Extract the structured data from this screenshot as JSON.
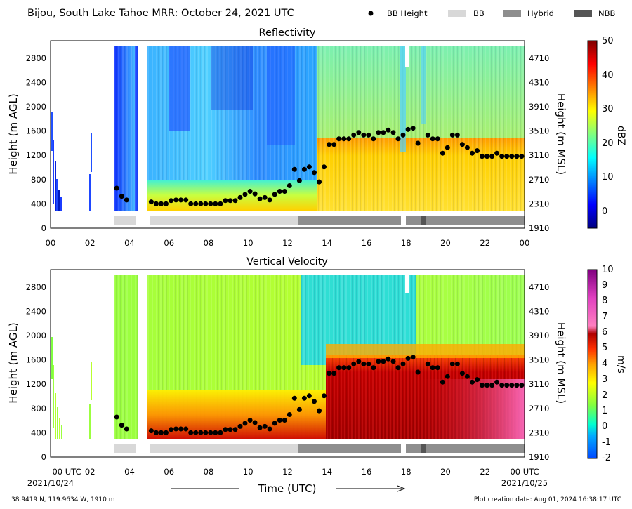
{
  "header": {
    "title": "Bijou, South Lake Tahoe MRR:  October 24, 2021 UTC",
    "legend": [
      {
        "label": "BB Height",
        "kind": "dot",
        "color": "#000000"
      },
      {
        "label": "BB",
        "kind": "box",
        "color": "#d8d8d8"
      },
      {
        "label": "Hybrid",
        "kind": "box",
        "color": "#8e8e8e"
      },
      {
        "label": "NBB",
        "kind": "box",
        "color": "#555555"
      }
    ]
  },
  "footer": {
    "location": "38.9419 N, 119.9634 W, 1910 m",
    "creation": "Plot creation date: Aug 01, 2024 16:38:17 UTC",
    "xlabel": "Time (UTC)",
    "start_date": "2021/10/24",
    "end_date": "2021/10/25"
  },
  "chart_data": [
    {
      "type": "heatmap",
      "title": "Reflectivity",
      "ylabel": "Height (m AGL)",
      "ylabel_right": "Height (m MSL)",
      "x_ticks": [
        "00",
        "02",
        "04",
        "06",
        "08",
        "10",
        "12",
        "14",
        "16",
        "18",
        "20",
        "22",
        "00"
      ],
      "xlim": [
        0,
        24
      ],
      "ylim": [
        0,
        3000
      ],
      "y_ticks": [
        0,
        400,
        800,
        1200,
        1600,
        2000,
        2400,
        2800
      ],
      "y_ticks_right": [
        1910,
        2310,
        2710,
        3110,
        3510,
        3910,
        4310,
        4710
      ],
      "colorbar": {
        "label": "dBZ",
        "min": -5,
        "max": 50,
        "ticks": [
          0,
          10,
          20,
          30,
          40,
          50
        ]
      },
      "bb_height": {
        "x": [
          3.35,
          3.6,
          3.85,
          4.15,
          4.35,
          5.1,
          5.35,
          5.6,
          5.85,
          6.1,
          6.35,
          6.6,
          6.85,
          7.1,
          7.35,
          7.6,
          7.85,
          8.1,
          8.35,
          8.6,
          8.85,
          9.1,
          9.35,
          9.6,
          9.85,
          10.1,
          10.35,
          10.6,
          10.85,
          11.1,
          11.35,
          11.6,
          11.85,
          12.1,
          12.35,
          12.6,
          12.85,
          13.1,
          13.35,
          13.6,
          13.85,
          14.1,
          14.35,
          14.6,
          14.85,
          15.1,
          15.35,
          15.6,
          15.85,
          16.1,
          16.35,
          16.6,
          16.85,
          17.1,
          17.35,
          17.6,
          17.85,
          18.1,
          18.35,
          18.6,
          18.85,
          19.1,
          19.35,
          19.6,
          19.85,
          20.1,
          20.35,
          20.6,
          20.85,
          21.1,
          21.35,
          21.6,
          21.85,
          22.1,
          22.35,
          22.6,
          22.85,
          23.1,
          23.35,
          23.6,
          23.85
        ],
        "y": [
          640,
          510,
          450,
          null,
          null,
          420,
          390,
          390,
          390,
          440,
          450,
          450,
          450,
          390,
          390,
          390,
          390,
          390,
          390,
          390,
          440,
          440,
          440,
          490,
          540,
          590,
          550,
          470,
          490,
          450,
          540,
          590,
          590,
          680,
          940,
          760,
          940,
          980,
          890,
          740,
          980,
          1340,
          1340,
          1430,
          1430,
          1430,
          1490,
          1530,
          1490,
          1490,
          1430,
          1530,
          1530,
          1570,
          1530,
          1430,
          1490,
          1580,
          1600,
          1360,
          null,
          1490,
          1430,
          1430,
          1200,
          1290,
          1490,
          1490,
          1340,
          1290,
          1200,
          1240,
          1150,
          1150,
          1150,
          1200,
          1150,
          1150,
          1150,
          1150,
          1150
        ]
      },
      "bb_type": [
        {
          "start": 3.25,
          "end": 4.3,
          "type": "BB"
        },
        {
          "start": 5.0,
          "end": 12.5,
          "type": "BB"
        },
        {
          "start": 12.5,
          "end": 17.75,
          "type": "Hybrid"
        },
        {
          "start": 18.1,
          "end": 18.75,
          "type": "Hybrid"
        },
        {
          "start": 18.75,
          "end": 19.0,
          "type": "NBB"
        },
        {
          "start": 19.0,
          "end": 24.0,
          "type": "Hybrid"
        }
      ]
    },
    {
      "type": "heatmap",
      "title": "Vertical Velocity",
      "ylabel": "Height (m AGL)",
      "ylabel_right": "Height (m MSL)",
      "x_ticks": [
        "00 UTC",
        "02",
        "04",
        "06",
        "08",
        "10",
        "12",
        "14",
        "16",
        "18",
        "20",
        "22",
        "00 UTC"
      ],
      "xlim": [
        0,
        24
      ],
      "ylim": [
        0,
        3000
      ],
      "y_ticks": [
        0,
        400,
        800,
        1200,
        1600,
        2000,
        2400,
        2800
      ],
      "y_ticks_right": [
        1910,
        2310,
        2710,
        3110,
        3510,
        3910,
        4310,
        4710
      ],
      "colorbar": {
        "label": "m/s",
        "min": -2,
        "max": 10,
        "ticks": [
          -2,
          -1,
          0,
          1,
          2,
          3,
          4,
          5,
          6,
          7,
          8,
          9,
          10
        ]
      },
      "bb_height": "same as Reflectivity panel",
      "bb_type": "same as Reflectivity panel"
    }
  ]
}
